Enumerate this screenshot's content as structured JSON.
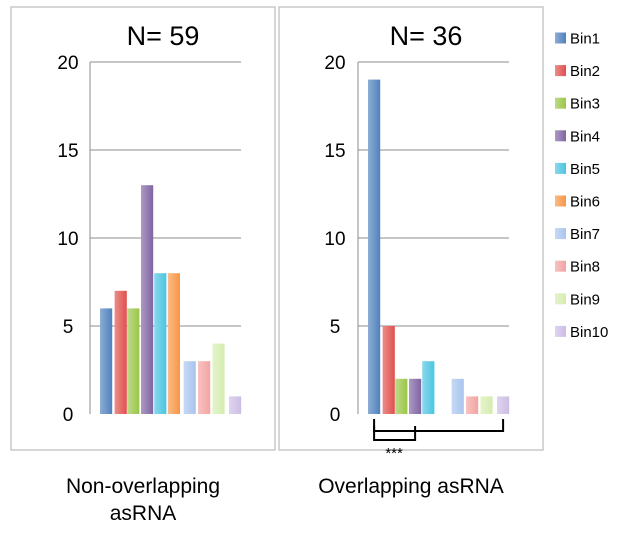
{
  "chart_data": [
    {
      "type": "bar",
      "title": "N= 59",
      "xlabel": "Non-overlapping asRNA",
      "xlabel_lines": [
        "Non-overlapping",
        "asRNA"
      ],
      "ylim": [
        0,
        20
      ],
      "yticks": [
        "0",
        "5",
        "10",
        "15",
        "20"
      ],
      "grid": true,
      "categories": [
        "Bin1",
        "Bin2",
        "Bin3",
        "Bin4",
        "Bin5",
        "Bin6",
        "Bin7",
        "Bin8",
        "Bin9",
        "Bin10"
      ],
      "values": [
        6,
        7,
        6,
        13,
        8,
        8,
        3,
        3,
        4,
        1
      ]
    },
    {
      "type": "bar",
      "title": "N= 36",
      "xlabel": "Overlapping asRNA",
      "xlabel_lines": [
        "Overlapping asRNA"
      ],
      "ylim": [
        0,
        20
      ],
      "yticks": [
        "0",
        "5",
        "10",
        "15",
        "20"
      ],
      "grid": true,
      "categories": [
        "Bin1",
        "Bin2",
        "Bin3",
        "Bin4",
        "Bin5",
        "Bin6",
        "Bin7",
        "Bin8",
        "Bin9",
        "Bin10"
      ],
      "values": [
        19,
        5,
        2,
        2,
        3,
        0,
        2,
        1,
        1,
        1
      ],
      "annotation": "***"
    }
  ],
  "legend": {
    "placement": "right",
    "entries": [
      {
        "label": "Bin1",
        "color": "#4f81bd"
      },
      {
        "label": "Bin2",
        "color": "#e0504d"
      },
      {
        "label": "Bin3",
        "color": "#9bc648"
      },
      {
        "label": "Bin4",
        "color": "#8064a2"
      },
      {
        "label": "Bin5",
        "color": "#4bc5e1"
      },
      {
        "label": "Bin6",
        "color": "#f79646"
      },
      {
        "label": "Bin7",
        "color": "#a9c4ef"
      },
      {
        "label": "Bin8",
        "color": "#f2a3a1"
      },
      {
        "label": "Bin9",
        "color": "#d5ecb0"
      },
      {
        "label": "Bin10",
        "color": "#ccbde6"
      }
    ]
  }
}
